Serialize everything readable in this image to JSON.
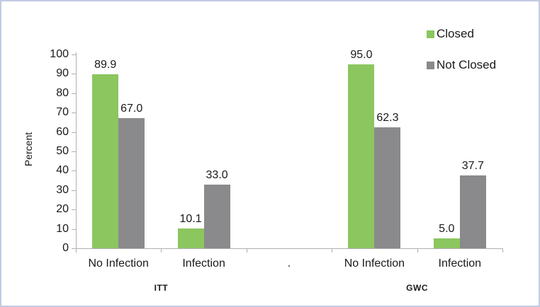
{
  "window": {
    "background": "#ffffff",
    "border_color": "#c2cbe2"
  },
  "chart_data": {
    "type": "bar",
    "title": "",
    "xlabel": "",
    "ylabel": "Percent",
    "ylim": [
      0,
      100
    ],
    "yticks": [
      0,
      10,
      20,
      30,
      40,
      50,
      60,
      70,
      80,
      90,
      100
    ],
    "categories": [
      "No Infection",
      "Infection",
      ".",
      "No Infection",
      "Infection"
    ],
    "groups": [
      {
        "label": "ITT",
        "slots": [
          0,
          1
        ]
      },
      {
        "label": "GWC",
        "slots": [
          3,
          4
        ]
      }
    ],
    "series": [
      {
        "name": "Closed",
        "color": "#8cc65f",
        "values": [
          89.9,
          10.1,
          null,
          95.0,
          5.0
        ]
      },
      {
        "name": "Not Closed",
        "color": "#8a8a8c",
        "values": [
          67.0,
          33.0,
          null,
          62.3,
          37.7
        ]
      }
    ],
    "data_labels": true,
    "value_decimals": 1,
    "legend_position": "top-right",
    "grid": false,
    "axis_color": "#b0b0b0"
  }
}
